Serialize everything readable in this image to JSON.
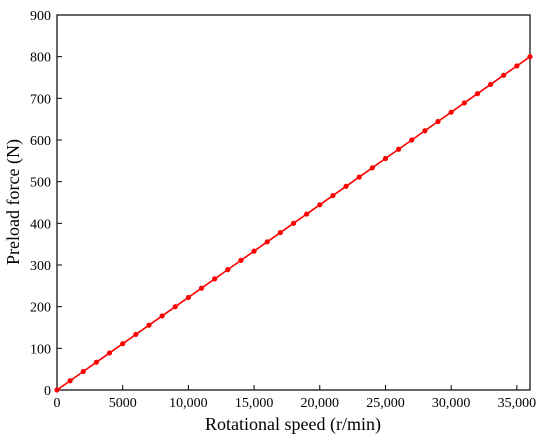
{
  "chart_data": {
    "type": "line",
    "title": "",
    "xlabel": "Rotational speed (r/min)",
    "ylabel": "Preload force (N)",
    "xlim": [
      0,
      36000
    ],
    "ylim": [
      0,
      900
    ],
    "x_ticks": [
      0,
      5000,
      10000,
      15000,
      20000,
      25000,
      30000,
      35000
    ],
    "x_tick_labels": [
      "0",
      "5000",
      "10,000",
      "15,000",
      "20,000",
      "25,000",
      "30,000",
      "35,000"
    ],
    "y_ticks": [
      0,
      100,
      200,
      300,
      400,
      500,
      600,
      700,
      800,
      900
    ],
    "y_tick_labels": [
      "0",
      "100",
      "200",
      "300",
      "400",
      "500",
      "600",
      "700",
      "800",
      "900"
    ],
    "grid": false,
    "legend": "none",
    "series": [
      {
        "color": "#ff0000",
        "marker": "circle",
        "x": [
          0,
          1000,
          2000,
          3000,
          4000,
          5000,
          6000,
          7000,
          8000,
          9000,
          10000,
          11000,
          12000,
          13000,
          14000,
          15000,
          16000,
          17000,
          18000,
          19000,
          20000,
          21000,
          22000,
          23000,
          24000,
          25000,
          26000,
          27000,
          28000,
          29000,
          30000,
          31000,
          32000,
          33000,
          34000,
          35000,
          36000
        ],
        "y": [
          0,
          22.2,
          44.4,
          66.7,
          88.9,
          111.1,
          133.3,
          155.6,
          177.8,
          200,
          222.2,
          244.4,
          266.7,
          288.9,
          311.1,
          333.3,
          355.6,
          377.8,
          400,
          422.2,
          444.4,
          466.7,
          488.9,
          511.1,
          533.3,
          555.6,
          577.8,
          600,
          622.2,
          644.4,
          666.7,
          688.9,
          711.1,
          733.3,
          755.6,
          777.8,
          800
        ]
      }
    ]
  }
}
